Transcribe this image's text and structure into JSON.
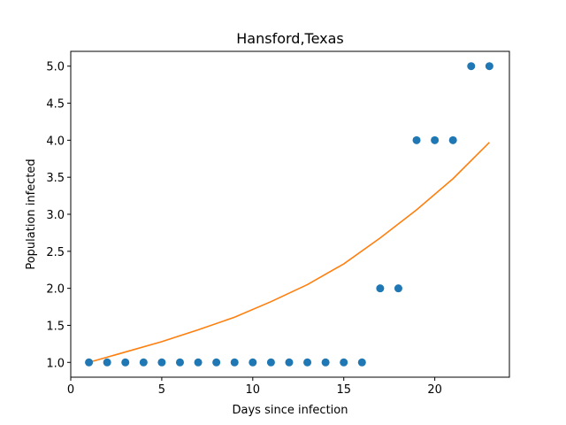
{
  "chart_data": {
    "type": "scatter",
    "title": "Hansford,Texas",
    "xlabel": "Days since infection",
    "ylabel": "Population infected",
    "xlim": [
      0,
      24.1
    ],
    "ylim": [
      0.8,
      5.2
    ],
    "xticks": [
      0,
      5,
      10,
      15,
      20
    ],
    "yticks": [
      1.0,
      1.5,
      2.0,
      2.5,
      3.0,
      3.5,
      4.0,
      4.5,
      5.0
    ],
    "grid": false,
    "colors": {
      "points": "#1f77b4",
      "fit": "#ff7f0e"
    },
    "series": [
      {
        "kind": "scatter",
        "x": [
          1,
          2,
          3,
          4,
          5,
          6,
          7,
          8,
          9,
          10,
          11,
          12,
          13,
          14,
          15,
          16,
          17,
          18,
          19,
          20,
          21,
          22,
          23
        ],
        "y": [
          1,
          1,
          1,
          1,
          1,
          1,
          1,
          1,
          1,
          1,
          1,
          1,
          1,
          1,
          1,
          1,
          2,
          2,
          4,
          4,
          4,
          5,
          5
        ]
      },
      {
        "kind": "line",
        "x": [
          1,
          3,
          5,
          7,
          9,
          11,
          13,
          15,
          17,
          19,
          21,
          23
        ],
        "y": [
          1.0,
          1.14,
          1.28,
          1.44,
          1.61,
          1.82,
          2.05,
          2.33,
          2.68,
          3.06,
          3.48,
          3.97
        ]
      }
    ]
  }
}
